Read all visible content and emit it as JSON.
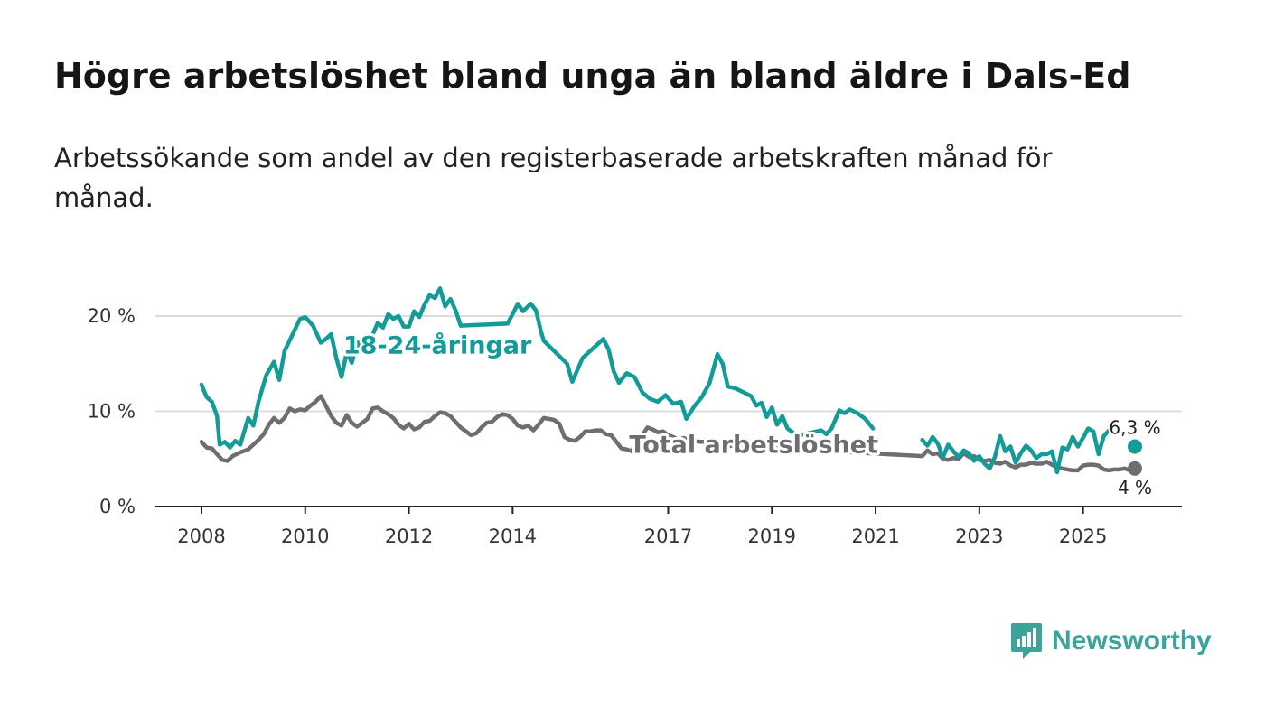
{
  "colors": {
    "youth": "#139c97",
    "total": "#6e6e70",
    "grid": "#dcdcdc",
    "axis": "#222222",
    "brand": "#3aa49b"
  },
  "brand": {
    "name": "Newsworthy",
    "icon": "newsworthy-logo-icon"
  },
  "chart_data": {
    "type": "line",
    "title": "Högre arbetslöshet bland unga än bland äldre i Dals-Ed",
    "subtitle": "Arbetssökande som andel av den registerbaserade arbetskraften månad för månad.",
    "xlabel": "",
    "ylabel": "",
    "x_range": [
      2008,
      2026.2
    ],
    "ylim": [
      0,
      24
    ],
    "y_ticks": [
      {
        "value": 0,
        "label": "0 %"
      },
      {
        "value": 10,
        "label": "10 %"
      },
      {
        "value": 20,
        "label": "20 %"
      }
    ],
    "x_ticks": [
      {
        "value": 2008,
        "label": "2008"
      },
      {
        "value": 2010,
        "label": "2010"
      },
      {
        "value": 2012,
        "label": "2012"
      },
      {
        "value": 2014,
        "label": "2014"
      },
      {
        "value": 2017,
        "label": "2017"
      },
      {
        "value": 2019,
        "label": "2019"
      },
      {
        "value": 2021,
        "label": "2021"
      },
      {
        "value": 2023,
        "label": "2023"
      },
      {
        "value": 2025,
        "label": "2025"
      }
    ],
    "grid": true,
    "series": [
      {
        "name": "18-24-åringar",
        "color": "#139c97",
        "label_at": [
          2012.55,
          17.0
        ],
        "end_label": "6,3 %",
        "points": [
          [
            2008.0,
            12.8
          ],
          [
            2008.1,
            11.5
          ],
          [
            2008.2,
            11.0
          ],
          [
            2008.3,
            9.5
          ],
          [
            2008.35,
            6.5
          ],
          [
            2008.45,
            6.8
          ],
          [
            2008.55,
            6.2
          ],
          [
            2008.65,
            6.9
          ],
          [
            2008.75,
            6.5
          ],
          [
            2008.9,
            9.3
          ],
          [
            2009.0,
            8.5
          ],
          [
            2009.1,
            11.0
          ],
          [
            2009.25,
            13.8
          ],
          [
            2009.4,
            15.2
          ],
          [
            2009.5,
            13.3
          ],
          [
            2009.6,
            16.3
          ],
          [
            2009.75,
            18.0
          ],
          [
            2009.9,
            19.7
          ],
          [
            2010.0,
            19.9
          ],
          [
            2010.15,
            19.0
          ],
          [
            2010.3,
            17.2
          ],
          [
            2010.4,
            17.6
          ],
          [
            2010.5,
            18.1
          ],
          [
            2010.6,
            15.6
          ],
          [
            2010.7,
            13.6
          ],
          [
            2010.8,
            16.2
          ],
          [
            2010.9,
            15.1
          ],
          [
            2011.0,
            17.3
          ],
          [
            2011.1,
            16.5
          ],
          [
            2011.25,
            17.4
          ],
          [
            2011.4,
            19.3
          ],
          [
            2011.5,
            18.8
          ],
          [
            2011.6,
            20.2
          ],
          [
            2011.7,
            19.7
          ],
          [
            2011.8,
            20.0
          ],
          [
            2011.9,
            18.9
          ],
          [
            2012.0,
            18.9
          ],
          [
            2012.1,
            20.5
          ],
          [
            2012.2,
            19.9
          ],
          [
            2012.3,
            21.2
          ],
          [
            2012.4,
            22.2
          ],
          [
            2012.5,
            21.9
          ],
          [
            2012.6,
            22.9
          ],
          [
            2012.7,
            21.0
          ],
          [
            2012.8,
            21.8
          ],
          [
            2012.9,
            20.6
          ],
          [
            2013.0,
            19.0
          ],
          [
            2013.9,
            19.2
          ],
          [
            2014.0,
            20.2
          ],
          [
            2014.1,
            21.3
          ],
          [
            2014.2,
            20.5
          ],
          [
            2014.35,
            21.3
          ],
          [
            2014.45,
            20.6
          ],
          [
            2014.55,
            18.3
          ],
          [
            2014.6,
            17.4
          ],
          [
            2015.05,
            15.0
          ],
          [
            2015.15,
            13.1
          ],
          [
            2015.35,
            15.6
          ],
          [
            2015.75,
            17.6
          ],
          [
            2015.85,
            16.5
          ],
          [
            2015.95,
            14.2
          ],
          [
            2016.05,
            13.0
          ],
          [
            2016.2,
            14.0
          ],
          [
            2016.35,
            13.6
          ],
          [
            2016.5,
            12.0
          ],
          [
            2016.65,
            11.3
          ],
          [
            2016.8,
            11.0
          ],
          [
            2016.95,
            11.7
          ],
          [
            2017.1,
            10.8
          ],
          [
            2017.25,
            11.0
          ],
          [
            2017.35,
            9.2
          ],
          [
            2017.5,
            10.5
          ],
          [
            2017.65,
            11.5
          ],
          [
            2017.8,
            13.0
          ],
          [
            2017.95,
            16.0
          ],
          [
            2018.05,
            15.0
          ],
          [
            2018.15,
            12.6
          ],
          [
            2018.3,
            12.4
          ],
          [
            2018.45,
            12.0
          ],
          [
            2018.6,
            11.6
          ],
          [
            2018.7,
            10.6
          ],
          [
            2018.8,
            10.9
          ],
          [
            2018.9,
            9.4
          ],
          [
            2019.0,
            10.4
          ],
          [
            2019.1,
            8.6
          ],
          [
            2019.2,
            9.5
          ],
          [
            2019.3,
            8.2
          ],
          [
            2019.4,
            7.8
          ],
          [
            2019.5,
            6.5
          ],
          [
            2019.55,
            7.5
          ],
          [
            2019.95,
            8.0
          ],
          [
            2020.05,
            7.6
          ],
          [
            2020.15,
            8.2
          ],
          [
            2020.3,
            10.1
          ],
          [
            2020.4,
            9.8
          ],
          [
            2020.5,
            10.2
          ],
          [
            2020.65,
            9.8
          ],
          [
            2020.8,
            9.2
          ],
          [
            2020.95,
            8.2
          ]
        ]
      },
      {
        "name": "Total arbetslöshet",
        "color": "#6e6e70",
        "label_at": [
          2018.65,
          6.6
        ],
        "end_label": "4 %",
        "points": [
          [
            2008.0,
            6.8
          ],
          [
            2008.1,
            6.2
          ],
          [
            2008.2,
            6.1
          ],
          [
            2008.3,
            5.5
          ],
          [
            2008.4,
            4.9
          ],
          [
            2008.5,
            4.8
          ],
          [
            2008.6,
            5.3
          ],
          [
            2008.75,
            5.7
          ],
          [
            2008.9,
            6.0
          ],
          [
            2009.0,
            6.5
          ],
          [
            2009.1,
            7.0
          ],
          [
            2009.2,
            7.6
          ],
          [
            2009.3,
            8.6
          ],
          [
            2009.4,
            9.3
          ],
          [
            2009.5,
            8.8
          ],
          [
            2009.6,
            9.3
          ],
          [
            2009.7,
            10.3
          ],
          [
            2009.8,
            10.0
          ],
          [
            2009.9,
            10.2
          ],
          [
            2010.0,
            10.1
          ],
          [
            2010.1,
            10.6
          ],
          [
            2010.2,
            11.0
          ],
          [
            2010.3,
            11.6
          ],
          [
            2010.4,
            10.6
          ],
          [
            2010.5,
            9.5
          ],
          [
            2010.6,
            8.8
          ],
          [
            2010.7,
            8.5
          ],
          [
            2010.8,
            9.6
          ],
          [
            2010.9,
            8.8
          ],
          [
            2011.0,
            8.4
          ],
          [
            2011.1,
            8.8
          ],
          [
            2011.2,
            9.2
          ],
          [
            2011.3,
            10.3
          ],
          [
            2011.4,
            10.4
          ],
          [
            2011.5,
            10.0
          ],
          [
            2011.6,
            9.7
          ],
          [
            2011.7,
            9.3
          ],
          [
            2011.8,
            8.6
          ],
          [
            2011.9,
            8.2
          ],
          [
            2012.0,
            8.7
          ],
          [
            2012.1,
            8.1
          ],
          [
            2012.2,
            8.3
          ],
          [
            2012.3,
            8.9
          ],
          [
            2012.4,
            9.0
          ],
          [
            2012.5,
            9.5
          ],
          [
            2012.6,
            9.9
          ],
          [
            2012.7,
            9.8
          ],
          [
            2012.8,
            9.5
          ],
          [
            2012.9,
            8.9
          ],
          [
            2013.0,
            8.3
          ],
          [
            2013.1,
            7.9
          ],
          [
            2013.2,
            7.5
          ],
          [
            2013.3,
            7.7
          ],
          [
            2013.4,
            8.3
          ],
          [
            2013.5,
            8.8
          ],
          [
            2013.6,
            8.9
          ],
          [
            2013.7,
            9.4
          ],
          [
            2013.8,
            9.7
          ],
          [
            2013.9,
            9.6
          ],
          [
            2014.0,
            9.2
          ],
          [
            2014.1,
            8.5
          ],
          [
            2014.2,
            8.3
          ],
          [
            2014.3,
            8.5
          ],
          [
            2014.4,
            8.0
          ],
          [
            2014.5,
            8.6
          ],
          [
            2014.6,
            9.3
          ],
          [
            2014.7,
            9.2
          ],
          [
            2014.8,
            9.1
          ],
          [
            2014.9,
            8.7
          ],
          [
            2015.0,
            7.3
          ],
          [
            2015.1,
            7.0
          ],
          [
            2015.2,
            6.9
          ],
          [
            2015.3,
            7.3
          ],
          [
            2015.4,
            7.9
          ],
          [
            2015.5,
            7.9
          ],
          [
            2015.6,
            8.0
          ],
          [
            2015.7,
            8.0
          ],
          [
            2015.8,
            7.6
          ],
          [
            2015.9,
            7.5
          ],
          [
            2016.0,
            6.8
          ],
          [
            2016.1,
            6.1
          ],
          [
            2016.2,
            6.0
          ],
          [
            2016.3,
            5.8
          ],
          [
            2016.4,
            7.1
          ],
          [
            2016.5,
            7.5
          ],
          [
            2016.6,
            8.3
          ],
          [
            2016.7,
            8.1
          ],
          [
            2016.8,
            7.8
          ],
          [
            2016.9,
            7.9
          ],
          [
            2017.0,
            7.5
          ],
          [
            2017.1,
            7.3
          ],
          [
            2017.2,
            7.0
          ],
          [
            2017.3,
            7.2
          ],
          [
            2017.4,
            6.9
          ],
          [
            2017.5,
            6.9
          ],
          [
            2017.6,
            6.8
          ],
          [
            2017.7,
            6.8
          ],
          [
            2017.8,
            6.9
          ],
          [
            2017.9,
            6.8
          ],
          [
            2018.0,
            6.7
          ],
          [
            2018.1,
            6.4
          ],
          [
            2021.9,
            5.3
          ],
          [
            2022.0,
            5.9
          ],
          [
            2022.1,
            5.5
          ],
          [
            2022.2,
            5.6
          ],
          [
            2022.3,
            5.0
          ],
          [
            2022.4,
            4.9
          ],
          [
            2022.5,
            5.1
          ],
          [
            2022.6,
            5.0
          ],
          [
            2022.7,
            5.6
          ],
          [
            2022.8,
            5.2
          ],
          [
            2022.9,
            5.3
          ],
          [
            2023.0,
            4.9
          ],
          [
            2023.1,
            4.8
          ],
          [
            2023.2,
            4.9
          ],
          [
            2023.3,
            4.6
          ],
          [
            2023.4,
            4.5
          ],
          [
            2023.5,
            4.7
          ],
          [
            2023.6,
            4.3
          ],
          [
            2023.7,
            4.1
          ],
          [
            2023.8,
            4.4
          ],
          [
            2023.9,
            4.4
          ],
          [
            2024.0,
            4.6
          ],
          [
            2024.1,
            4.5
          ],
          [
            2024.2,
            4.5
          ],
          [
            2024.3,
            4.7
          ],
          [
            2024.4,
            4.4
          ],
          [
            2024.5,
            4.1
          ],
          [
            2024.6,
            4.0
          ],
          [
            2024.7,
            3.9
          ],
          [
            2024.8,
            3.8
          ],
          [
            2024.9,
            3.8
          ],
          [
            2025.0,
            4.3
          ],
          [
            2025.1,
            4.4
          ],
          [
            2025.2,
            4.4
          ],
          [
            2025.3,
            4.3
          ],
          [
            2025.4,
            3.9
          ],
          [
            2025.5,
            3.8
          ],
          [
            2025.6,
            3.9
          ],
          [
            2025.7,
            3.9
          ],
          [
            2025.8,
            4.0
          ],
          [
            2025.9,
            3.8
          ],
          [
            2026.0,
            4.0
          ]
        ]
      },
      {
        "name": "18-24-åringar (fortsättning)",
        "color": "#139c97",
        "points": [
          [
            2021.9,
            7.0
          ],
          [
            2022.0,
            6.4
          ],
          [
            2022.1,
            7.3
          ],
          [
            2022.2,
            6.6
          ],
          [
            2022.3,
            5.2
          ],
          [
            2022.4,
            6.5
          ],
          [
            2022.5,
            5.8
          ],
          [
            2022.6,
            5.2
          ],
          [
            2022.7,
            5.9
          ],
          [
            2022.8,
            5.6
          ],
          [
            2022.9,
            4.8
          ],
          [
            2023.0,
            5.3
          ],
          [
            2023.1,
            4.5
          ],
          [
            2023.2,
            4.0
          ],
          [
            2023.3,
            5.2
          ],
          [
            2023.4,
            7.4
          ],
          [
            2023.5,
            5.8
          ],
          [
            2023.6,
            6.3
          ],
          [
            2023.7,
            4.6
          ],
          [
            2023.8,
            5.6
          ],
          [
            2023.9,
            6.4
          ],
          [
            2024.0,
            5.9
          ],
          [
            2024.1,
            5.1
          ],
          [
            2024.2,
            5.5
          ],
          [
            2024.3,
            5.5
          ],
          [
            2024.4,
            5.8
          ],
          [
            2024.5,
            3.6
          ],
          [
            2024.6,
            6.2
          ],
          [
            2024.7,
            6.0
          ],
          [
            2024.8,
            7.3
          ],
          [
            2024.9,
            6.3
          ],
          [
            2025.0,
            7.2
          ],
          [
            2025.1,
            8.2
          ],
          [
            2025.2,
            7.9
          ],
          [
            2025.3,
            5.5
          ],
          [
            2025.4,
            7.4
          ],
          [
            2025.55,
            8.3
          ]
        ]
      }
    ],
    "end_points": [
      {
        "series": "18-24-åringar",
        "x": 2026.0,
        "y": 6.3,
        "label": "6,3 %"
      },
      {
        "series": "Total arbetslöshet",
        "x": 2026.0,
        "y": 4.0,
        "label": "4 %"
      }
    ]
  }
}
